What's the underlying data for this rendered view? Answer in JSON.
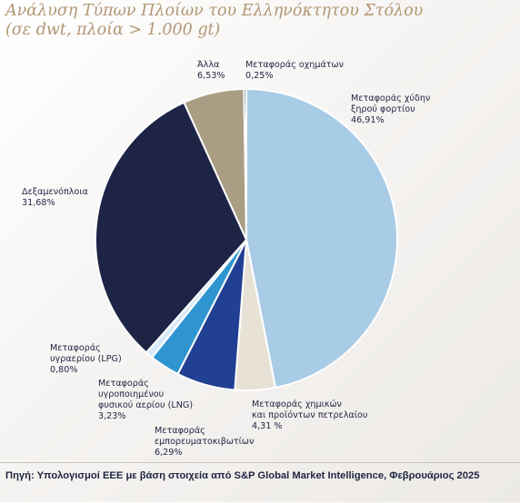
{
  "chart_data": {
    "type": "pie",
    "title": "Ανάλυση Τύπων Πλοίων του Ελληνόκτητου Στόλου",
    "subtitle": "(σε dwt, πλοία > 1.000 gt)",
    "slices": [
      {
        "label": "Μεταφοράς χύδην ξηρού φορτίου",
        "display": "46,91%",
        "value": 46.91,
        "color": "#a8cbe6"
      },
      {
        "label": "Μεταφοράς χημικών και προϊόντων πετρελαίου",
        "display": "4,31 %",
        "value": 4.31,
        "color": "#e8e1d6"
      },
      {
        "label": "Μεταφοράς εμπορευματοκιβωτίων",
        "display": "6,29%",
        "value": 6.29,
        "color": "#213f93"
      },
      {
        "label": "Μεταφοράς υγροποιημένου φυσικού αερίου (LNG)",
        "display": "3,23%",
        "value": 3.23,
        "color": "#2f95d0"
      },
      {
        "label": "Μεταφοράς υγραερίου (LPG)",
        "display": "0,80%",
        "value": 0.8,
        "color": "#d8eaf7"
      },
      {
        "label": "Δεξαμενόπλοια",
        "display": "31,68%",
        "value": 31.68,
        "color": "#1d2446"
      },
      {
        "label": "Άλλα",
        "display": "6,53%",
        "value": 6.53,
        "color": "#aa9d84"
      },
      {
        "label": "Μεταφοράς οχημάτων",
        "display": "0,25%",
        "value": 0.25,
        "color": "#2e5a6a"
      }
    ],
    "labels": [
      {
        "lines": [
          "Μεταφοράς χύδην",
          "ξηρού φορτίου",
          "46,91%"
        ]
      },
      {
        "lines": [
          "Μεταφοράς χημικών",
          "και προϊόντων πετρελαίου",
          "4,31 %"
        ]
      },
      {
        "lines": [
          "Μεταφοράς",
          "εμπορευματοκιβωτίων",
          "6,29%"
        ]
      },
      {
        "lines": [
          "Μεταφοράς",
          "υγροποιημένου",
          "φυσικού αερίου (LNG)",
          "3,23%"
        ]
      },
      {
        "lines": [
          "Μεταφοράς",
          "υγραερίου (LPG)",
          "0,80%"
        ]
      },
      {
        "lines": [
          "Δεξαμενόπλοια",
          "31,68%"
        ]
      },
      {
        "lines": [
          "Άλλα",
          "6,53%"
        ]
      },
      {
        "lines": [
          "Μεταφοράς οχημάτων",
          "0,25%"
        ]
      }
    ]
  },
  "source": "Πηγή: Υπολογισμοί ΕΕΕ με βάση στοιχεία από S&P Global Market Intelligence, Φεβρουάριος 2025"
}
